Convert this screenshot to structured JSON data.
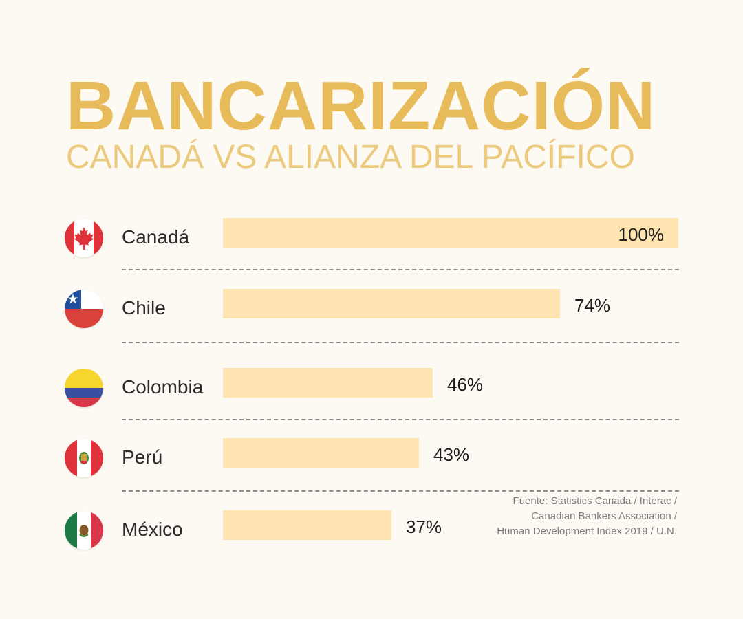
{
  "chart_data": {
    "type": "bar",
    "orientation": "horizontal",
    "title": "BANCARIZACIÓN",
    "subtitle": "CANADÁ VS ALIANZA DEL PACÍFICO",
    "categories": [
      "Canadá",
      "Chile",
      "Colombia",
      "Perú",
      "México"
    ],
    "values": [
      100,
      74,
      46,
      43,
      37
    ],
    "value_labels": [
      "100%",
      "74%",
      "46%",
      "43%",
      "37%"
    ],
    "xlim": [
      0,
      100
    ],
    "unit": "%",
    "grid": false,
    "flags": [
      "canada-flag-icon",
      "chile-flag-icon",
      "colombia-flag-icon",
      "peru-flag-icon",
      "mexico-flag-icon"
    ]
  },
  "source": [
    "Fuente: Statistics Canada / Interac /",
    "Canadian Bankers Association /",
    "Human Development Index 2019 / U.N."
  ],
  "colors": {
    "title": "#e8bb5a",
    "subtitle": "#ecca7d",
    "bar": "#fde4b0",
    "background": "#fdf9f3"
  }
}
